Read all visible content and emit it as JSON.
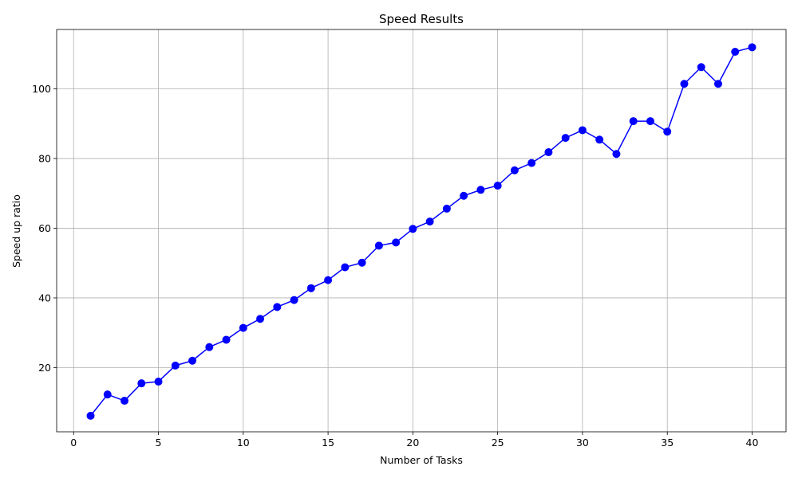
{
  "chart_data": {
    "type": "line",
    "title": "Speed Results",
    "xlabel": "Number of Tasks",
    "ylabel": "Speed up ratio",
    "xlim": [
      -1,
      42
    ],
    "ylim": [
      1.6,
      117
    ],
    "xticks": [
      0,
      5,
      10,
      15,
      20,
      25,
      30,
      35,
      40
    ],
    "yticks": [
      20,
      40,
      60,
      80,
      100
    ],
    "grid": true,
    "series": [
      {
        "color": "#0000ff",
        "marker": "circle",
        "x": [
          1,
          2,
          3,
          4,
          5,
          6,
          7,
          8,
          9,
          10,
          11,
          12,
          13,
          14,
          15,
          16,
          17,
          18,
          19,
          20,
          21,
          22,
          23,
          24,
          25,
          26,
          27,
          28,
          29,
          30,
          31,
          32,
          33,
          34,
          35,
          36,
          37,
          38,
          39,
          40
        ],
        "y": [
          6.2,
          12.3,
          10.5,
          15.5,
          16.0,
          20.6,
          22.0,
          25.9,
          28.0,
          31.4,
          34.0,
          37.4,
          39.4,
          42.8,
          45.1,
          48.8,
          50.1,
          55.0,
          55.9,
          59.8,
          61.9,
          65.6,
          69.3,
          71.0,
          72.2,
          76.6,
          78.7,
          81.8,
          85.9,
          88.1,
          85.4,
          81.3,
          90.7,
          90.7,
          87.7,
          101.4,
          106.2,
          101.4,
          110.6,
          111.9
        ]
      }
    ]
  }
}
